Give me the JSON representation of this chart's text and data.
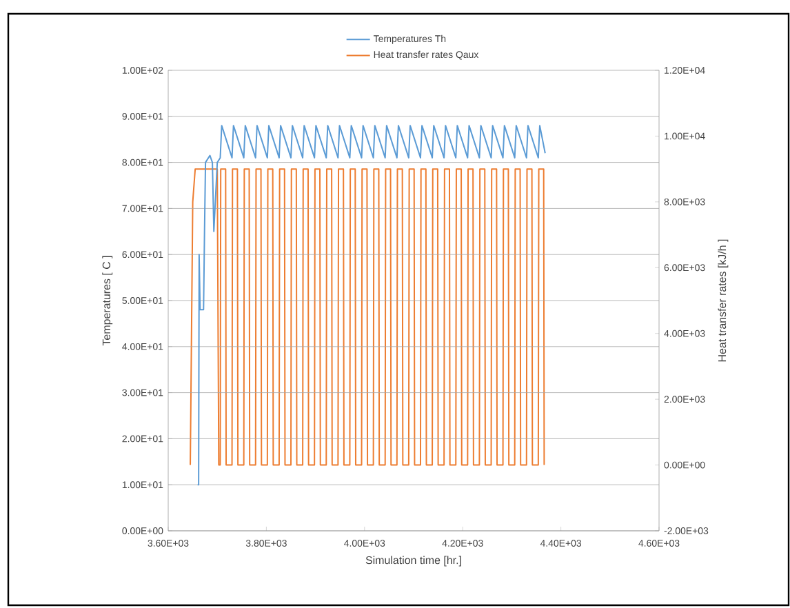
{
  "chart_data": {
    "type": "line",
    "xlabel": "Simulation time [hr.]",
    "ylabel": "Temperatures [ C ]",
    "y2label": "Heat transfer rates [kJ/h ]",
    "xlim": [
      3600,
      4600
    ],
    "xticks": [
      {
        "value": 3600,
        "label": "3.60E+03"
      },
      {
        "value": 3800,
        "label": "3.80E+03"
      },
      {
        "value": 4000,
        "label": "4.00E+03"
      },
      {
        "value": 4200,
        "label": "4.20E+03"
      },
      {
        "value": 4400,
        "label": "4.40E+03"
      },
      {
        "value": 4600,
        "label": "4.60E+03"
      }
    ],
    "ylim": [
      0,
      100
    ],
    "yticks": [
      {
        "value": 0,
        "label": "0.00E+00"
      },
      {
        "value": 10,
        "label": "1.00E+01"
      },
      {
        "value": 20,
        "label": "2.00E+01"
      },
      {
        "value": 30,
        "label": "3.00E+01"
      },
      {
        "value": 40,
        "label": "4.00E+01"
      },
      {
        "value": 50,
        "label": "5.00E+01"
      },
      {
        "value": 60,
        "label": "6.00E+01"
      },
      {
        "value": 70,
        "label": "7.00E+01"
      },
      {
        "value": 80,
        "label": "8.00E+01"
      },
      {
        "value": 90,
        "label": "9.00E+01"
      },
      {
        "value": 100,
        "label": "1.00E+02"
      }
    ],
    "y2lim": [
      -2000,
      12000
    ],
    "y2ticks": [
      {
        "value": -2000,
        "label": "-2.00E+03"
      },
      {
        "value": 0,
        "label": "0.00E+00"
      },
      {
        "value": 2000,
        "label": "2.00E+03"
      },
      {
        "value": 4000,
        "label": "4.00E+03"
      },
      {
        "value": 6000,
        "label": "6.00E+03"
      },
      {
        "value": 8000,
        "label": "8.00E+03"
      },
      {
        "value": 10000,
        "label": "1.00E+04"
      },
      {
        "value": 12000,
        "label": "1.20E+04"
      }
    ],
    "grid": "y",
    "legend": "top",
    "marker": "none",
    "line_style": "solid",
    "series": [
      {
        "name": "Temperatures Th",
        "color": "#5b9bd5",
        "x": [
          3660,
          3662,
          3663,
          3665,
          3672,
          3674,
          3676,
          3685,
          3690,
          3693,
          3700,
          3706,
          3709,
          3730,
          3733,
          3754,
          3757,
          3778,
          3781,
          3802,
          3805,
          3826,
          3829,
          3850,
          3853,
          3874,
          3877,
          3898,
          3901,
          3922,
          3925,
          3946,
          3949,
          3970,
          3973,
          3994,
          3997,
          4018,
          4021,
          4042,
          4045,
          4066,
          4069,
          4090,
          4093,
          4114,
          4117,
          4138,
          4141,
          4162,
          4165,
          4186,
          4189,
          4210,
          4213,
          4234,
          4237,
          4258,
          4261,
          4282,
          4285,
          4306,
          4309,
          4330,
          4333,
          4354,
          4357,
          4368
        ],
        "values": [
          10,
          10,
          60,
          48,
          48,
          65,
          80,
          81.5,
          80,
          65,
          80,
          81,
          88,
          81,
          88,
          81,
          88,
          81,
          88,
          81,
          88,
          81,
          88,
          81,
          88,
          81,
          88,
          81,
          88,
          81,
          88,
          81,
          88,
          81,
          88,
          81,
          88,
          81,
          88,
          81,
          88,
          81,
          88,
          81,
          88,
          81,
          88,
          81,
          88,
          81,
          88,
          81,
          88,
          81,
          88,
          81,
          88,
          81,
          88,
          81,
          88,
          81,
          88,
          81,
          88,
          81,
          88,
          82
        ]
      },
      {
        "name": "Heat transfer rates  Qaux",
        "color": "#ed7d31",
        "axis": "y2",
        "x": [
          3645,
          3650,
          3655,
          3700,
          3703,
          3706,
          3707,
          3717,
          3718,
          3730,
          3731,
          3741,
          3742,
          3754,
          3755,
          3765,
          3766,
          3778,
          3779,
          3789,
          3790,
          3802,
          3803,
          3813,
          3814,
          3826,
          3827,
          3837,
          3838,
          3850,
          3851,
          3861,
          3862,
          3874,
          3875,
          3885,
          3886,
          3898,
          3899,
          3909,
          3910,
          3922,
          3923,
          3933,
          3934,
          3946,
          3947,
          3957,
          3958,
          3970,
          3971,
          3981,
          3982,
          3994,
          3995,
          4005,
          4006,
          4018,
          4019,
          4029,
          4030,
          4042,
          4043,
          4053,
          4054,
          4066,
          4067,
          4077,
          4078,
          4090,
          4091,
          4101,
          4102,
          4114,
          4115,
          4125,
          4126,
          4138,
          4139,
          4149,
          4150,
          4162,
          4163,
          4173,
          4174,
          4186,
          4187,
          4197,
          4198,
          4210,
          4211,
          4221,
          4222,
          4234,
          4235,
          4245,
          4246,
          4258,
          4259,
          4269,
          4270,
          4282,
          4283,
          4293,
          4294,
          4306,
          4307,
          4317,
          4318,
          4330,
          4331,
          4341,
          4342,
          4354,
          4355,
          4365,
          4366
        ],
        "values": [
          0,
          8000,
          9000,
          9000,
          0,
          0,
          9000,
          9000,
          0,
          0,
          9000,
          9000,
          0,
          0,
          9000,
          9000,
          0,
          0,
          9000,
          9000,
          0,
          0,
          9000,
          9000,
          0,
          0,
          9000,
          9000,
          0,
          0,
          9000,
          9000,
          0,
          0,
          9000,
          9000,
          0,
          0,
          9000,
          9000,
          0,
          0,
          9000,
          9000,
          0,
          0,
          9000,
          9000,
          0,
          0,
          9000,
          9000,
          0,
          0,
          9000,
          9000,
          0,
          0,
          9000,
          9000,
          0,
          0,
          9000,
          9000,
          0,
          0,
          9000,
          9000,
          0,
          0,
          9000,
          9000,
          0,
          0,
          9000,
          9000,
          0,
          0,
          9000,
          9000,
          0,
          0,
          9000,
          9000,
          0,
          0,
          9000,
          9000,
          0,
          0,
          9000,
          9000,
          0,
          0,
          9000,
          9000,
          0,
          0,
          9000,
          9000,
          0,
          0,
          9000,
          9000,
          0,
          0,
          9000,
          9000,
          0,
          0,
          9000,
          9000,
          0,
          0,
          9000,
          9000,
          0
        ]
      }
    ]
  }
}
